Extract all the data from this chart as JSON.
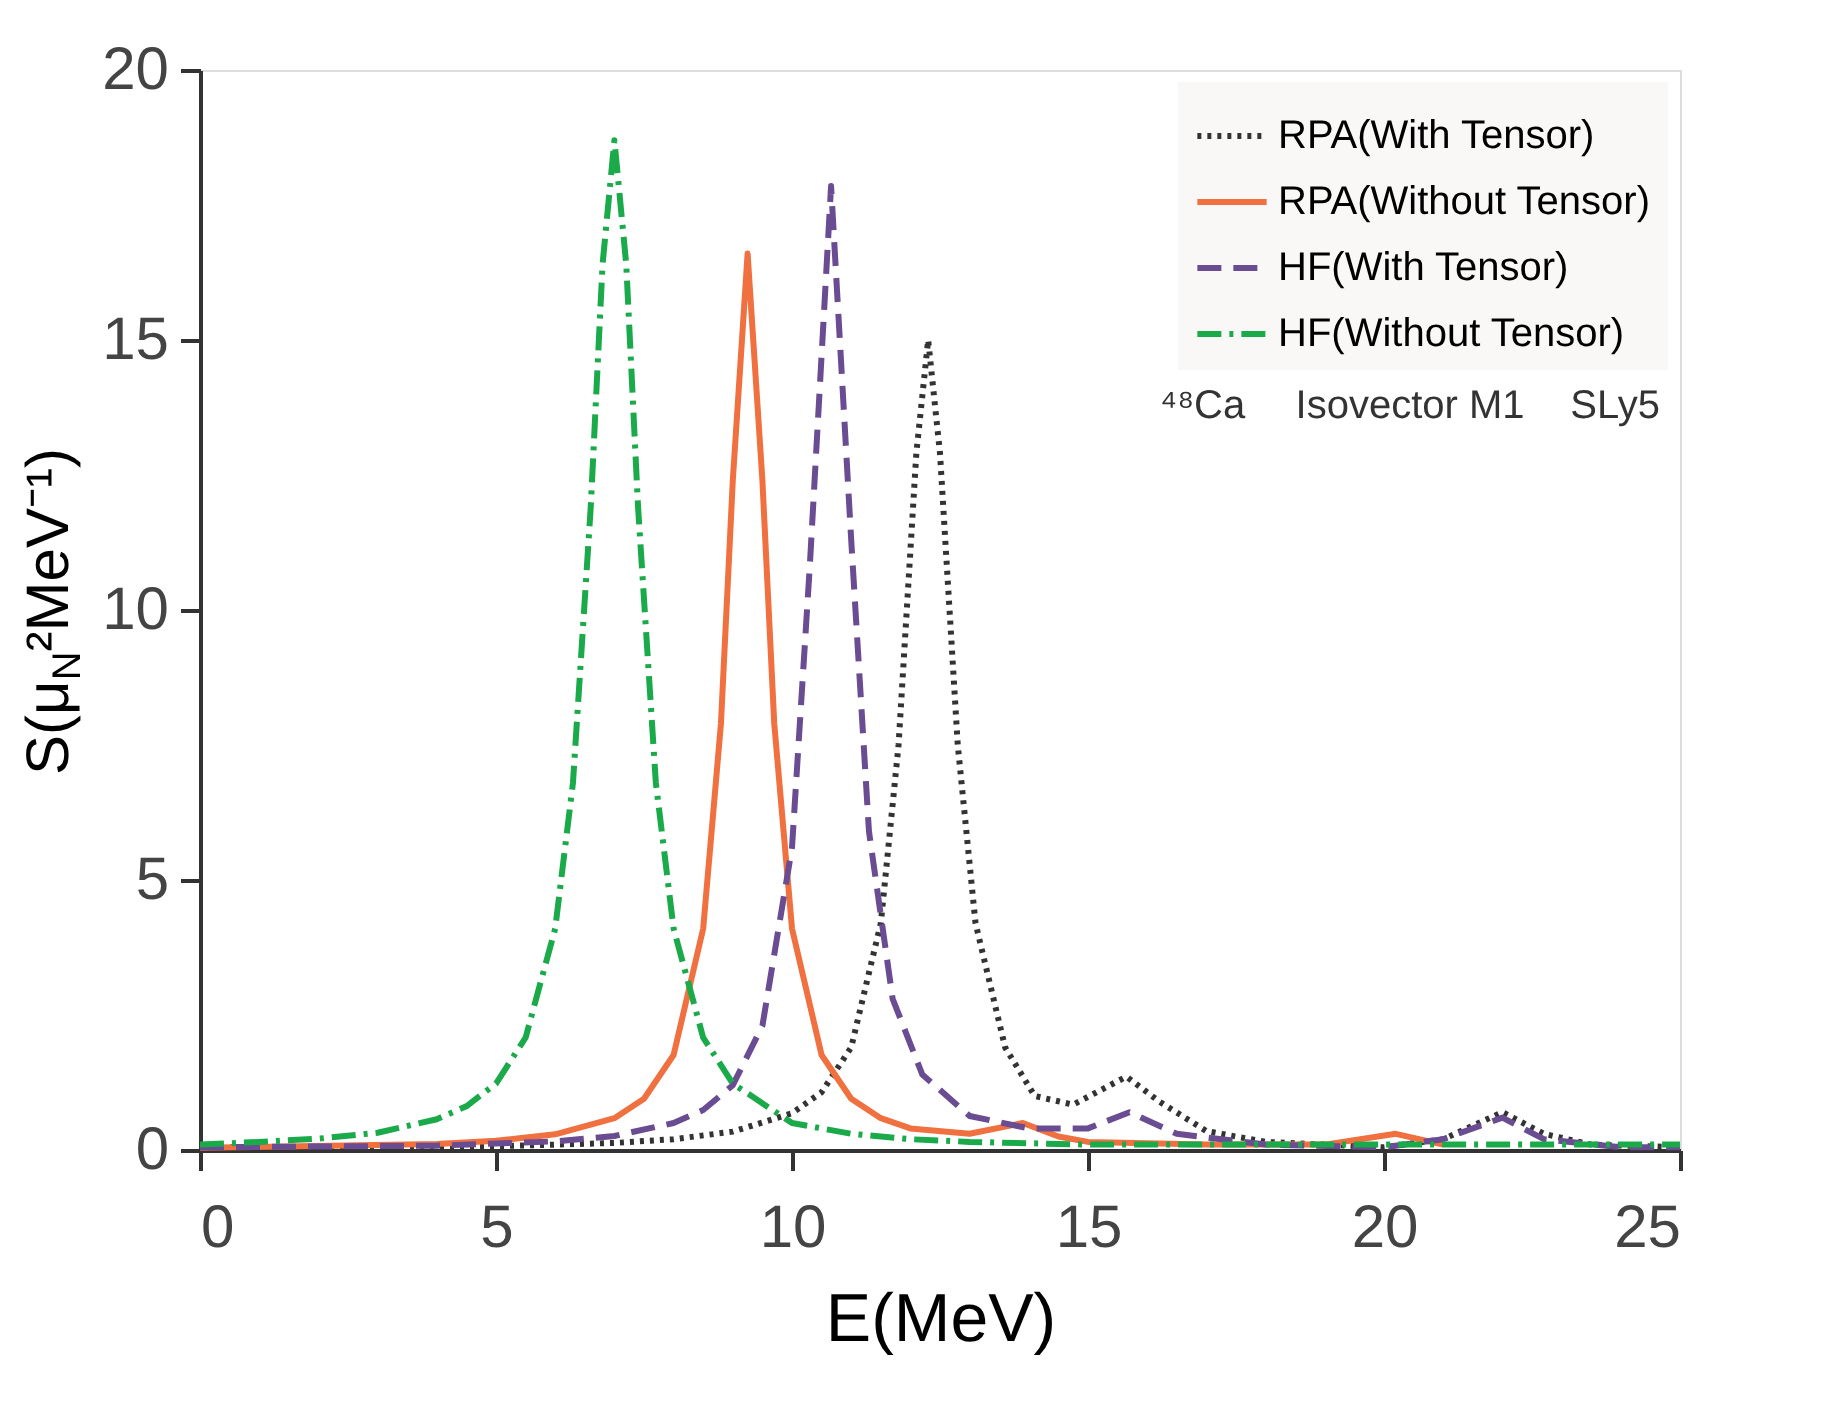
{
  "chart_data": {
    "type": "line",
    "xlabel": "E(MeV)",
    "ylabel": "S(μ$_{N}$²MeV⁻¹)",
    "xlim": [
      0,
      25
    ],
    "ylim": [
      0,
      20
    ],
    "xticks": [
      0,
      5,
      10,
      15,
      20,
      25
    ],
    "yticks": [
      0,
      5,
      10,
      15,
      20
    ],
    "grid": false,
    "legend": "top right",
    "marker": "none",
    "annotations": [
      "⁴⁸Ca",
      "Isovector M1",
      "SLy5"
    ],
    "series": [
      {
        "name": "RPA(With Tensor)",
        "color": "#333333",
        "line_style": "dotted",
        "x": [
          0,
          5,
          7,
          8,
          9,
          10,
          10.5,
          11,
          11.5,
          11.8,
          12.1,
          12.3,
          12.5,
          12.8,
          13.1,
          13.6,
          14.1,
          14.75,
          15.2,
          15.65,
          16.2,
          17,
          18,
          20,
          21,
          22,
          22.7,
          23.5,
          25
        ],
        "values": [
          0.05,
          0.07,
          0.13,
          0.2,
          0.34,
          0.68,
          1.07,
          1.9,
          4.2,
          7.5,
          12.9,
          15.0,
          12.9,
          7.5,
          4.2,
          1.9,
          1.0,
          0.84,
          1.1,
          1.36,
          0.9,
          0.35,
          0.15,
          0.05,
          0.2,
          0.7,
          0.3,
          0.1,
          0.05
        ]
      },
      {
        "name": "RPA(Without Tensor)",
        "color": "#f07040",
        "line_style": "solid",
        "x": [
          0,
          4,
          5,
          6,
          7,
          7.5,
          8,
          8.5,
          8.8,
          9,
          9.25,
          9.5,
          9.7,
          10,
          10.5,
          11,
          11.5,
          12,
          13,
          13.9,
          14.5,
          15,
          17,
          19,
          20.2,
          21
        ],
        "values": [
          0.04,
          0.11,
          0.17,
          0.29,
          0.59,
          0.95,
          1.76,
          4.1,
          7.9,
          12.4,
          16.6,
          12.4,
          7.9,
          4.1,
          1.76,
          0.95,
          0.59,
          0.4,
          0.3,
          0.5,
          0.25,
          0.15,
          0.1,
          0.1,
          0.3,
          0.1
        ]
      },
      {
        "name": "HF(With Tensor)",
        "color": "#6a4c93",
        "line_style": "dashed",
        "x": [
          0,
          4,
          6,
          7,
          8,
          8.5,
          9,
          9.5,
          10,
          10.3,
          10.66,
          11,
          11.3,
          11.7,
          12.2,
          13,
          14,
          15,
          15.7,
          16.5,
          18,
          20,
          21,
          22,
          22.7,
          24,
          25
        ],
        "values": [
          0.05,
          0.08,
          0.16,
          0.26,
          0.5,
          0.74,
          1.2,
          2.3,
          5.6,
          10.8,
          17.85,
          11.3,
          5.9,
          2.8,
          1.4,
          0.63,
          0.4,
          0.4,
          0.7,
          0.3,
          0.1,
          0.05,
          0.2,
          0.6,
          0.2,
          0.05,
          0.05
        ]
      },
      {
        "name": "HF(Without Tensor)",
        "color": "#1aaa4a",
        "line_style": "dashdot",
        "x": [
          0,
          1,
          2,
          3,
          4,
          4.5,
          5,
          5.5,
          6,
          6.3,
          6.6,
          6.8,
          7.0,
          7.2,
          7.4,
          7.7,
          8,
          8.5,
          9,
          10,
          11,
          12,
          13,
          15,
          18,
          25
        ],
        "values": [
          0.1,
          0.15,
          0.21,
          0.32,
          0.57,
          0.81,
          1.23,
          2.08,
          4.1,
          6.8,
          11.9,
          16.4,
          18.7,
          16.4,
          11.9,
          6.8,
          4.1,
          2.08,
          1.23,
          0.5,
          0.3,
          0.2,
          0.15,
          0.1,
          0.1,
          0.1
        ]
      }
    ]
  }
}
